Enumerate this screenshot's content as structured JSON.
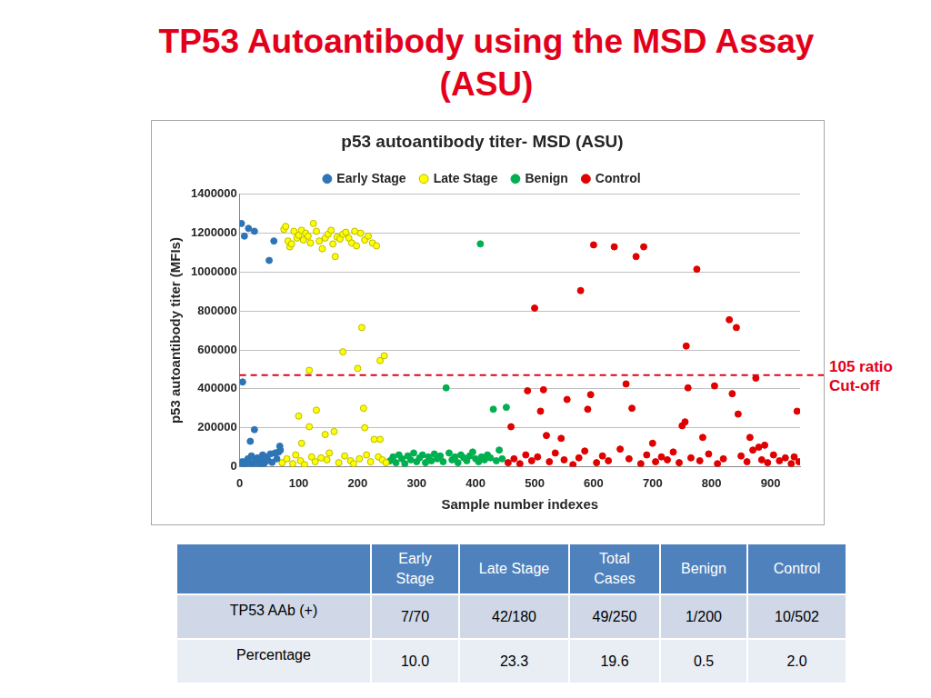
{
  "page_title": [
    "TP53 Autoantibody using the MSD Assay",
    "(ASU)"
  ],
  "chart_data": {
    "type": "scatter",
    "title": "p53 autoantibody titer- MSD (ASU)",
    "x_label": "Sample number indexes",
    "y_label": "p53 autoantibody titer (MFIs)",
    "xlim": [
      0,
      950
    ],
    "xticks": [
      0,
      100,
      200,
      300,
      400,
      500,
      600,
      700,
      800,
      900
    ],
    "ylim": [
      0,
      1400000
    ],
    "yticks": [
      0,
      200000,
      400000,
      600000,
      800000,
      1000000,
      1200000,
      1400000
    ],
    "grid": true,
    "legend": "top",
    "marker": "circle",
    "cutoff": {
      "value": 470000,
      "label": [
        "105 ratio",
        "Cut-off"
      ],
      "color": "#e3001b",
      "line_style": "dashed"
    },
    "series": [
      {
        "name": "Early Stage",
        "color": "#2e75b6",
        "x": [
          3,
          8,
          15,
          25,
          50,
          58,
          5,
          25,
          18,
          68,
          1,
          4,
          7,
          10,
          12,
          14,
          17,
          20,
          22,
          27,
          30,
          33,
          36,
          39,
          42,
          45,
          48,
          52,
          55,
          60,
          63,
          66,
          69,
          38,
          44
        ],
        "values": [
          1250000,
          1185000,
          1225000,
          1210000,
          1060000,
          1160000,
          435000,
          190000,
          130000,
          105000,
          10000,
          25000,
          15000,
          5000,
          30000,
          40000,
          20000,
          55000,
          12000,
          35000,
          45000,
          8000,
          28000,
          60000,
          18000,
          50000,
          32000,
          65000,
          22000,
          70000,
          40000,
          75000,
          85000,
          15000,
          42000
        ]
      },
      {
        "name": "Late Stage",
        "color": "#ffff00",
        "x": [
          75,
          78,
          82,
          85,
          88,
          92,
          97,
          100,
          105,
          108,
          112,
          116,
          120,
          125,
          130,
          135,
          140,
          145,
          150,
          155,
          158,
          162,
          165,
          170,
          175,
          180,
          185,
          190,
          195,
          198,
          205,
          212,
          218,
          225,
          232,
          118,
          175,
          200,
          207,
          238,
          245,
          100,
          130,
          210,
          118,
          160,
          145,
          228,
          238,
          105,
          212,
          72,
          80,
          90,
          95,
          103,
          110,
          122,
          128,
          138,
          148,
          152,
          168,
          178,
          188,
          193,
          203,
          215,
          222,
          235,
          242,
          248
        ],
        "values": [
          1220000,
          1235000,
          1160000,
          1130000,
          1145000,
          1210000,
          1175000,
          1190000,
          1215000,
          1165000,
          1200000,
          1185000,
          1150000,
          1250000,
          1210000,
          1160000,
          1120000,
          1175000,
          1195000,
          1215000,
          1145000,
          1080000,
          1180000,
          1170000,
          1195000,
          1205000,
          1175000,
          1150000,
          1210000,
          1135000,
          1200000,
          1165000,
          1185000,
          1150000,
          1135000,
          495000,
          590000,
          505000,
          715000,
          545000,
          570000,
          260000,
          290000,
          300000,
          205000,
          180000,
          165000,
          140000,
          140000,
          120000,
          200000,
          20000,
          40000,
          15000,
          60000,
          30000,
          10000,
          50000,
          25000,
          45000,
          35000,
          70000,
          20000,
          55000,
          30000,
          15000,
          40000,
          60000,
          25000,
          50000,
          35000,
          20000
        ]
      },
      {
        "name": "Benign",
        "color": "#00b050",
        "x": [
          255,
          260,
          265,
          270,
          275,
          280,
          285,
          290,
          295,
          300,
          305,
          310,
          315,
          320,
          325,
          330,
          335,
          340,
          345,
          355,
          360,
          365,
          370,
          375,
          380,
          385,
          390,
          395,
          400,
          405,
          410,
          415,
          420,
          425,
          435,
          440,
          445,
          408,
          350,
          430,
          452
        ],
        "values": [
          30000,
          50000,
          20000,
          60000,
          40000,
          15000,
          55000,
          35000,
          70000,
          25000,
          45000,
          60000,
          20000,
          50000,
          30000,
          65000,
          40000,
          55000,
          25000,
          70000,
          35000,
          50000,
          20000,
          60000,
          45000,
          30000,
          55000,
          75000,
          40000,
          25000,
          50000,
          35000,
          60000,
          45000,
          30000,
          85000,
          40000,
          1145000,
          405000,
          295000,
          305000
        ]
      },
      {
        "name": "Control",
        "color": "#e00000",
        "x": [
          460,
          488,
          500,
          515,
          510,
          520,
          545,
          555,
          578,
          590,
          595,
          600,
          635,
          655,
          665,
          672,
          685,
          700,
          750,
          755,
          757,
          760,
          775,
          785,
          805,
          830,
          835,
          842,
          845,
          865,
          875,
          880,
          890,
          945,
          455,
          465,
          475,
          485,
          495,
          505,
          525,
          535,
          550,
          565,
          575,
          585,
          605,
          615,
          625,
          645,
          660,
          680,
          690,
          705,
          715,
          725,
          735,
          745,
          765,
          780,
          795,
          810,
          820,
          850,
          860,
          870,
          885,
          895,
          905,
          915,
          925,
          935,
          940,
          948
        ],
        "values": [
          205000,
          390000,
          815000,
          395000,
          285000,
          160000,
          145000,
          345000,
          905000,
          295000,
          370000,
          1140000,
          1130000,
          425000,
          300000,
          1080000,
          1130000,
          120000,
          210000,
          230000,
          620000,
          405000,
          1015000,
          150000,
          415000,
          755000,
          375000,
          715000,
          270000,
          150000,
          455000,
          100000,
          110000,
          285000,
          20000,
          40000,
          15000,
          60000,
          30000,
          50000,
          25000,
          70000,
          35000,
          10000,
          45000,
          80000,
          20000,
          55000,
          30000,
          90000,
          40000,
          15000,
          60000,
          25000,
          50000,
          35000,
          75000,
          20000,
          45000,
          30000,
          65000,
          15000,
          40000,
          55000,
          25000,
          85000,
          35000,
          20000,
          60000,
          30000,
          45000,
          15000,
          50000,
          25000
        ]
      }
    ]
  },
  "table": {
    "header": [
      "Early Stage",
      "Late Stage",
      "Total Cases",
      "Benign",
      "Control"
    ],
    "rows": [
      [
        "TP53 AAb (+)",
        "7/70",
        "42/180",
        "49/250",
        "1/200",
        "10/502"
      ],
      [
        "Percentage",
        "10.0",
        "23.3",
        "19.6",
        "0.5",
        "2.0"
      ]
    ]
  }
}
